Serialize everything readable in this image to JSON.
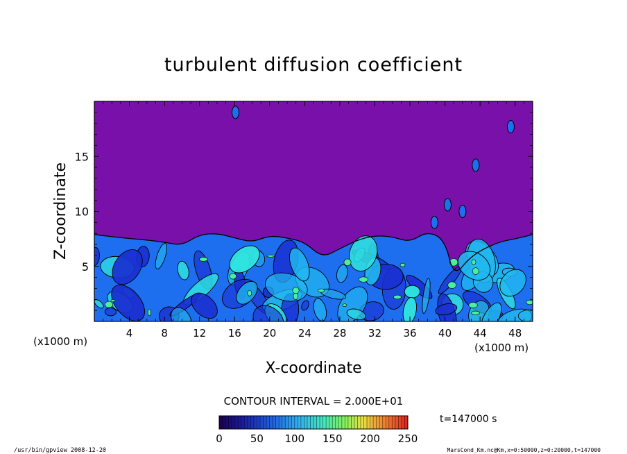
{
  "chart_data": {
    "type": "heatmap",
    "title": "turbulent diffusion coefficient",
    "xlabel": "X-coordinate",
    "ylabel": "Z-coordinate",
    "x_unit": "(x1000 m)",
    "x_unit_right": "(x1000 m)",
    "xlim": [
      0,
      50
    ],
    "ylim": [
      0,
      20
    ],
    "x_ticks": [
      4,
      8,
      12,
      16,
      20,
      24,
      28,
      32,
      36,
      40,
      44,
      48
    ],
    "y_ticks": [
      5,
      10,
      15
    ],
    "contour_interval_text": "CONTOUR INTERVAL = 2.000E+01",
    "colorbar": {
      "ticks": [
        0,
        50,
        100,
        150,
        200,
        250
      ],
      "range": [
        0,
        250
      ]
    },
    "time_label": "t=147000 s",
    "background_value": 0,
    "boundary_layer_top": [
      {
        "x": 0,
        "z": 7.9
      },
      {
        "x": 3,
        "z": 7.6
      },
      {
        "x": 6,
        "z": 7.4
      },
      {
        "x": 8,
        "z": 7.2
      },
      {
        "x": 10,
        "z": 6.9
      },
      {
        "x": 12,
        "z": 7.9
      },
      {
        "x": 14,
        "z": 8.0
      },
      {
        "x": 16,
        "z": 7.6
      },
      {
        "x": 18,
        "z": 7.2
      },
      {
        "x": 20,
        "z": 7.8
      },
      {
        "x": 22,
        "z": 7.6
      },
      {
        "x": 24,
        "z": 7.2
      },
      {
        "x": 26,
        "z": 5.8
      },
      {
        "x": 28,
        "z": 6.6
      },
      {
        "x": 30,
        "z": 7.4
      },
      {
        "x": 32,
        "z": 7.8
      },
      {
        "x": 34,
        "z": 7.7
      },
      {
        "x": 36,
        "z": 7.2
      },
      {
        "x": 38,
        "z": 8.2
      },
      {
        "x": 40,
        "z": 7.4
      },
      {
        "x": 41,
        "z": 4.0
      },
      {
        "x": 43,
        "z": 6.0
      },
      {
        "x": 46,
        "z": 7.2
      },
      {
        "x": 48,
        "z": 7.5
      },
      {
        "x": 50,
        "z": 7.9
      }
    ],
    "isolated_patches": [
      {
        "x": 16.1,
        "z": 19.0
      },
      {
        "x": 43.5,
        "z": 14.2
      },
      {
        "x": 40.3,
        "z": 10.6
      },
      {
        "x": 42.0,
        "z": 10.0
      },
      {
        "x": 38.8,
        "z": 9.0
      },
      {
        "x": 47.5,
        "z": 17.7
      }
    ]
  },
  "footer": {
    "left": "/usr/bin/gpview   2008-12-20",
    "right": "MarsCond_Km.nc@Km,x=0:50000,z=0:20000,t=147000"
  },
  "colors": {
    "background": "#7a10aa",
    "layer_deep": "#1a2fd0",
    "layer_mid": "#1e6ef0",
    "layer_light": "#22b8f0",
    "layer_cyan": "#30e6e0",
    "layer_green": "#4af0a0",
    "contour": "#000000"
  }
}
